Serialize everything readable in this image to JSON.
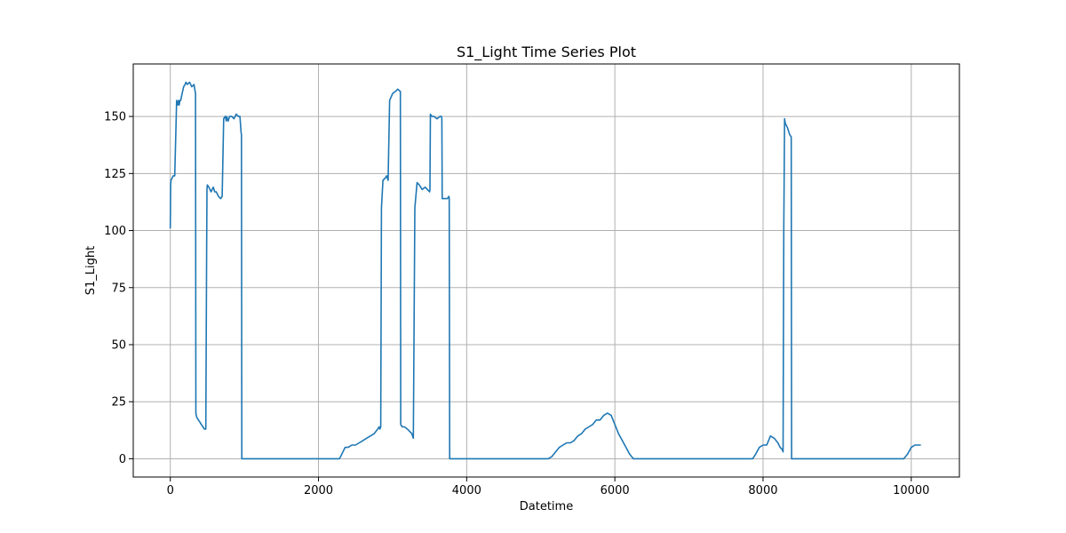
{
  "chart_data": {
    "type": "line",
    "title": "S1_Light Time Series Plot",
    "xlabel": "Datetime",
    "ylabel": "S1_Light",
    "xlim": [
      -500,
      10650
    ],
    "ylim": [
      -8,
      173
    ],
    "xticks": [
      0,
      2000,
      4000,
      6000,
      8000,
      10000
    ],
    "xtick_labels": [
      "0",
      "2000",
      "4000",
      "6000",
      "8000",
      "10000"
    ],
    "yticks": [
      0,
      25,
      50,
      75,
      100,
      125,
      150
    ],
    "ytick_labels": [
      "0",
      "25",
      "50",
      "75",
      "100",
      "125",
      "150"
    ],
    "grid": true,
    "color": "#1f77b4",
    "series": [
      {
        "x": [
          0,
          5,
          10,
          40,
          60,
          80,
          85,
          100,
          110,
          120,
          130,
          140,
          160,
          180,
          200,
          210,
          230,
          260,
          290,
          320,
          340,
          345,
          350,
          360,
          380,
          400,
          420,
          440,
          460,
          480,
          490,
          495,
          500,
          520,
          550,
          580,
          600,
          620,
          650,
          680,
          700,
          720,
          740,
          750,
          755,
          760,
          780,
          800,
          830,
          860,
          890,
          920,
          940,
          955,
          960,
          965,
          970,
          2280,
          2300,
          2330,
          2360,
          2400,
          2450,
          2500,
          2550,
          2600,
          2650,
          2700,
          2750,
          2800,
          2820,
          2830,
          2840,
          2850,
          2870,
          2900,
          2920,
          2940,
          2960,
          3000,
          3040,
          3070,
          3100,
          3105,
          3110,
          3130,
          3160,
          3200,
          3230,
          3260,
          3270,
          3280,
          3300,
          3330,
          3360,
          3400,
          3440,
          3470,
          3500,
          3505,
          3510,
          3530,
          3560,
          3600,
          3640,
          3660,
          3665,
          3670,
          3700,
          3740,
          3760,
          3765,
          3770,
          5080,
          5100,
          5150,
          5200,
          5250,
          5300,
          5350,
          5400,
          5450,
          5500,
          5550,
          5600,
          5650,
          5700,
          5750,
          5800,
          5850,
          5900,
          5950,
          6000,
          6050,
          6100,
          6150,
          6200,
          6250,
          7860,
          7900,
          7950,
          8000,
          8050,
          8100,
          8150,
          8200,
          8230,
          8260,
          8270,
          8280,
          8290,
          8300,
          8330,
          8360,
          8380,
          8385,
          8390,
          9900,
          9950,
          10000,
          10050,
          10100,
          10130
        ],
        "y": [
          101,
          120,
          122,
          124,
          124,
          150,
          157,
          155,
          157,
          155,
          157,
          157,
          160,
          163,
          164,
          165,
          164,
          165,
          163,
          164,
          160,
          20,
          19,
          18,
          17,
          16,
          15,
          14,
          13,
          13,
          90,
          118,
          120,
          119,
          117,
          119,
          117,
          117,
          115,
          114,
          115,
          149,
          150,
          149,
          148,
          150,
          148,
          150,
          150,
          149,
          151,
          150,
          150,
          143,
          142,
          0,
          0,
          0,
          1,
          3,
          5,
          5,
          6,
          6,
          7,
          8,
          9,
          10,
          11,
          13,
          14,
          13,
          14,
          110,
          122,
          123,
          124,
          122,
          157,
          160,
          161,
          162,
          161,
          161,
          15,
          14,
          14,
          13,
          12,
          11,
          10,
          9,
          110,
          121,
          120,
          118,
          119,
          118,
          117,
          118,
          151,
          150,
          150,
          149,
          150,
          150,
          149,
          114,
          114,
          114,
          115,
          114,
          0,
          0,
          0,
          1,
          3,
          5,
          6,
          7,
          7,
          8,
          10,
          11,
          13,
          14,
          15,
          17,
          17,
          19,
          20,
          19,
          15,
          11,
          8,
          5,
          2,
          0,
          0,
          2,
          5,
          6,
          6,
          10,
          9,
          7,
          5,
          4,
          3,
          100,
          149,
          147,
          145,
          142,
          141,
          0,
          0,
          0,
          2,
          5,
          6,
          6,
          6
        ]
      }
    ]
  }
}
